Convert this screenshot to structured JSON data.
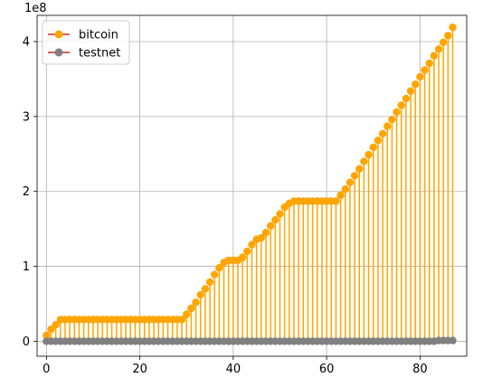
{
  "chart_data": {
    "type": "stem",
    "title": "",
    "xlabel": "",
    "ylabel": "",
    "y_offset_label": "1e8",
    "xlim": [
      -2,
      90
    ],
    "ylim": [
      -0.2,
      4.35
    ],
    "xticks": [
      0,
      20,
      40,
      60,
      80
    ],
    "xtick_labels": [
      "0",
      "20",
      "40",
      "60",
      "80"
    ],
    "yticks": [
      0,
      1,
      2,
      3,
      4
    ],
    "ytick_labels": [
      "0",
      "1",
      "2",
      "3",
      "4"
    ],
    "grid": true,
    "legend_position": "top-left",
    "baseline_color": "#d62728",
    "x": [
      0,
      1,
      2,
      3,
      4,
      5,
      6,
      7,
      8,
      9,
      10,
      11,
      12,
      13,
      14,
      15,
      16,
      17,
      18,
      19,
      20,
      21,
      22,
      23,
      24,
      25,
      26,
      27,
      28,
      29,
      30,
      31,
      32,
      33,
      34,
      35,
      36,
      37,
      38,
      39,
      40,
      41,
      42,
      43,
      44,
      45,
      46,
      47,
      48,
      49,
      50,
      51,
      52,
      53,
      54,
      55,
      56,
      57,
      58,
      59,
      60,
      61,
      62,
      63,
      64,
      65,
      66,
      67,
      68,
      69,
      70,
      71,
      72,
      73,
      74,
      75,
      76,
      77,
      78,
      79,
      80,
      81,
      82,
      83,
      84,
      85,
      86,
      87
    ],
    "series": [
      {
        "name": "bitcoin",
        "color": "#ffa500",
        "values": [
          0.08,
          0.16,
          0.22,
          0.29,
          0.29,
          0.29,
          0.29,
          0.29,
          0.29,
          0.29,
          0.29,
          0.29,
          0.29,
          0.29,
          0.29,
          0.29,
          0.29,
          0.29,
          0.29,
          0.29,
          0.29,
          0.29,
          0.29,
          0.29,
          0.29,
          0.29,
          0.29,
          0.29,
          0.29,
          0.29,
          0.36,
          0.44,
          0.52,
          0.62,
          0.7,
          0.79,
          0.89,
          0.98,
          1.05,
          1.08,
          1.08,
          1.08,
          1.12,
          1.2,
          1.29,
          1.36,
          1.38,
          1.45,
          1.54,
          1.62,
          1.7,
          1.79,
          1.84,
          1.87,
          1.87,
          1.87,
          1.87,
          1.87,
          1.87,
          1.87,
          1.87,
          1.87,
          1.87,
          1.95,
          2.03,
          2.12,
          2.21,
          2.3,
          2.4,
          2.49,
          2.59,
          2.68,
          2.77,
          2.87,
          2.96,
          3.06,
          3.15,
          3.24,
          3.34,
          3.43,
          3.53,
          3.62,
          3.71,
          3.81,
          3.9,
          3.99,
          4.08,
          4.19
        ]
      },
      {
        "name": "testnet",
        "color": "#808080",
        "values": [
          0,
          0,
          0,
          0,
          0,
          0,
          0,
          0,
          0,
          0,
          0,
          0,
          0,
          0,
          0,
          0,
          0,
          0,
          0,
          0,
          0,
          0,
          0,
          0,
          0,
          0,
          0,
          0,
          0,
          0,
          0,
          0,
          0,
          0,
          0,
          0,
          0,
          0,
          0,
          0,
          0,
          0,
          0,
          0,
          0,
          0,
          0,
          0,
          0,
          0,
          0,
          0,
          0,
          0,
          0,
          0,
          0,
          0,
          0,
          0,
          0,
          0,
          0,
          0,
          0,
          0,
          0,
          0,
          0,
          0,
          0,
          0,
          0,
          0,
          0,
          0,
          0,
          0,
          0,
          0,
          0,
          0,
          0,
          0,
          0.01,
          0.01,
          0.01,
          0.01
        ]
      }
    ]
  }
}
